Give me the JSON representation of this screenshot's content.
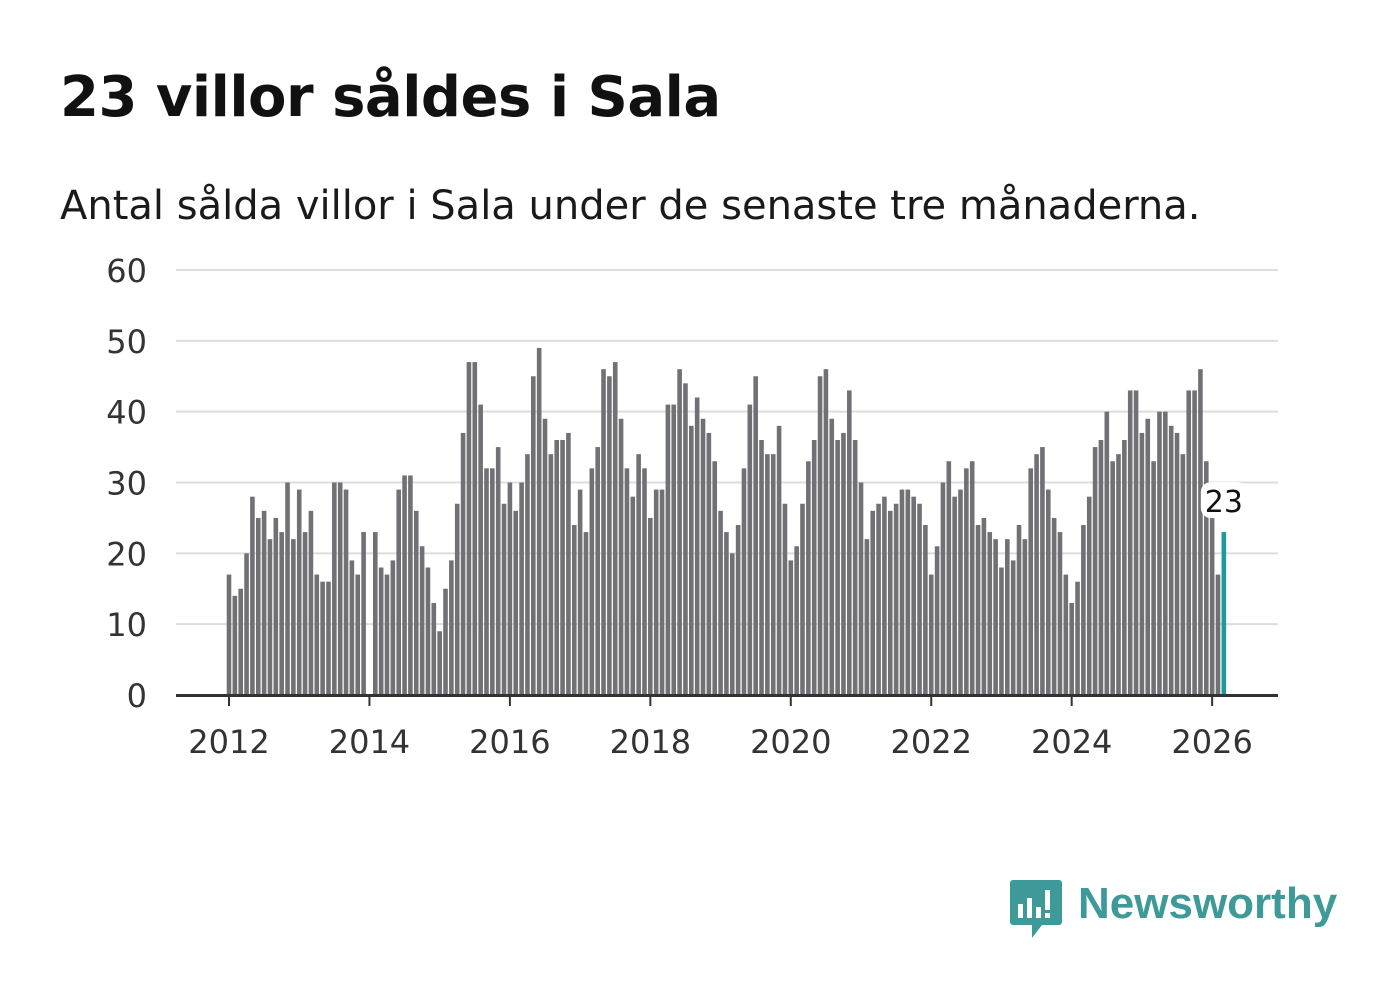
{
  "header": {
    "title": "23 villor såldes i Sala",
    "subtitle": "Antal sålda villor i Sala under de senaste tre månaderna."
  },
  "logo": {
    "name": "Newsworthy",
    "icon": "bar-chart-speech-bubble-icon",
    "color": "#3d9a98"
  },
  "colors": {
    "bar": "#717075",
    "highlight": "#1f9a9a",
    "grid": "#dddddd",
    "axis": "#333333"
  },
  "chart_data": {
    "type": "bar",
    "title": "23 villor såldes i Sala",
    "subtitle": "Antal sålda villor i Sala under de senaste tre månaderna.",
    "xlabel": "",
    "ylabel": "",
    "ylim": [
      0,
      60
    ],
    "yticks": [
      0,
      10,
      20,
      30,
      40,
      50,
      60
    ],
    "xticks": [
      "2012",
      "2014",
      "2016",
      "2018",
      "2020",
      "2022",
      "2024",
      "2026"
    ],
    "start": "2012-01",
    "grid": true,
    "legend": "none",
    "last_value_label": "23",
    "values": [
      17,
      14,
      15,
      20,
      28,
      25,
      26,
      22,
      25,
      23,
      30,
      22,
      29,
      23,
      26,
      17,
      16,
      16,
      30,
      30,
      29,
      19,
      17,
      23,
      0,
      23,
      18,
      17,
      19,
      29,
      31,
      31,
      26,
      21,
      18,
      13,
      9,
      15,
      19,
      27,
      37,
      47,
      47,
      41,
      32,
      32,
      35,
      27,
      30,
      26,
      30,
      34,
      45,
      49,
      39,
      34,
      36,
      36,
      37,
      24,
      29,
      23,
      32,
      35,
      46,
      45,
      47,
      39,
      32,
      28,
      34,
      32,
      25,
      29,
      29,
      41,
      41,
      46,
      44,
      38,
      42,
      39,
      37,
      33,
      26,
      23,
      20,
      24,
      32,
      41,
      45,
      36,
      34,
      34,
      38,
      27,
      19,
      21,
      27,
      33,
      36,
      45,
      46,
      39,
      36,
      37,
      43,
      36,
      30,
      22,
      26,
      27,
      28,
      26,
      27,
      29,
      29,
      28,
      27,
      24,
      17,
      21,
      30,
      33,
      28,
      29,
      32,
      33,
      24,
      25,
      23,
      22,
      18,
      22,
      19,
      24,
      22,
      32,
      34,
      35,
      29,
      25,
      23,
      17,
      13,
      16,
      24,
      28,
      35,
      36,
      40,
      33,
      34,
      36,
      43,
      43,
      37,
      39,
      33,
      40,
      40,
      38,
      37,
      34,
      43,
      43,
      46,
      33,
      25,
      17,
      23
    ]
  }
}
